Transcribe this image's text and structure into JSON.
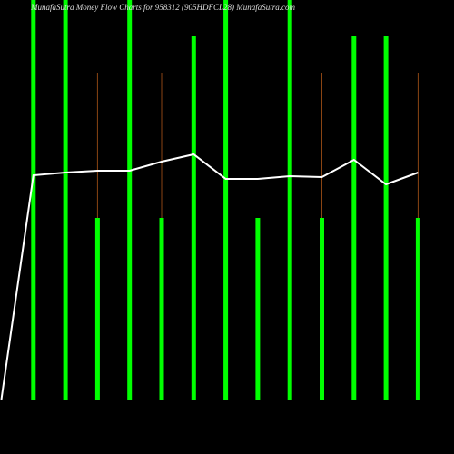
{
  "chart_data": {
    "type": "bar",
    "title": "MunafaSutra Money Flow Charts for 958312 (905HDFCL28) MunafaSutra.com",
    "categories": [
      null,
      null,
      null,
      null,
      null,
      null,
      null,
      null,
      null,
      null,
      null,
      null,
      null,
      null
    ],
    "series": [
      {
        "color": "#00ff00",
        "values": [
          null,
          440,
          440,
          200,
          440,
          200,
          400,
          440,
          200,
          440,
          200,
          400,
          400,
          200
        ]
      },
      {
        "color": "#8b4513",
        "values": [
          null,
          null,
          null,
          360,
          null,
          360,
          null,
          null,
          null,
          null,
          360,
          null,
          null,
          360
        ]
      },
      {
        "color": "#ffffff",
        "values": [
          0,
          247,
          250,
          252,
          252,
          262,
          270,
          243,
          243,
          246,
          245,
          264,
          237,
          250
        ]
      }
    ],
    "ylim": [
      0,
      440
    ]
  }
}
